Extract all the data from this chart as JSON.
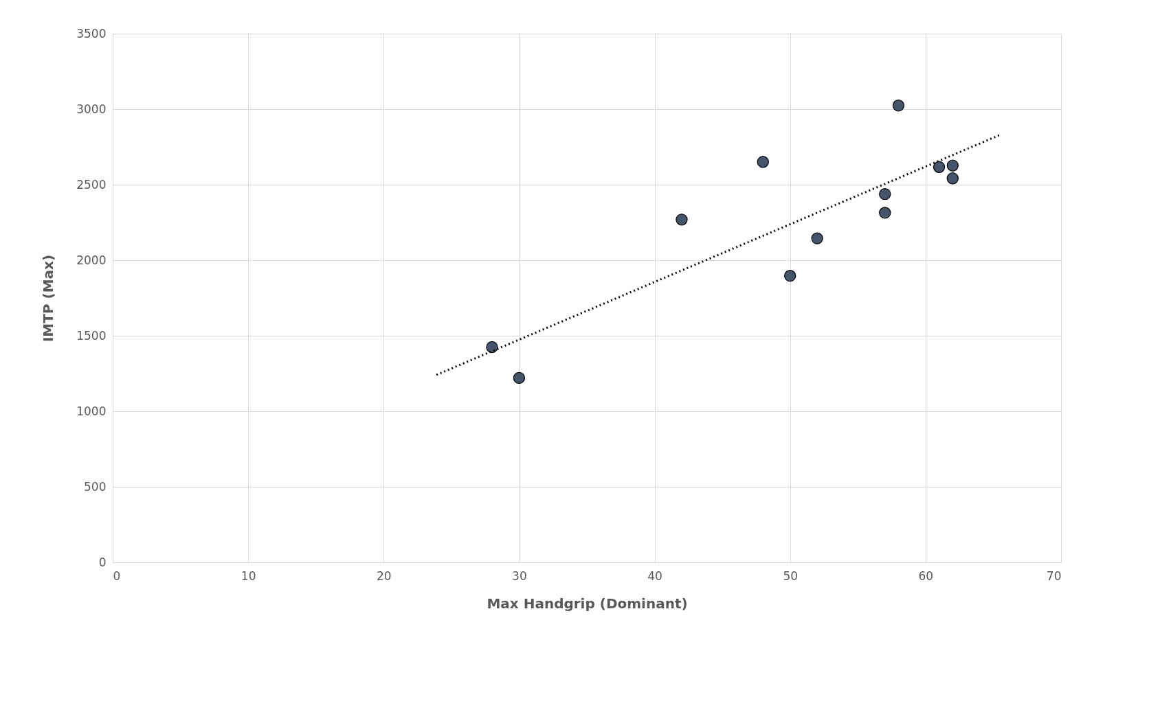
{
  "chart_data": {
    "type": "scatter",
    "xlabel": "Max Handgrip (Dominant)",
    "ylabel": "IMTP (Max)",
    "xlim": [
      0,
      70
    ],
    "xticks": [
      0,
      10,
      20,
      30,
      40,
      50,
      60,
      70
    ],
    "ylim": [
      0,
      3500
    ],
    "yticks": [
      0,
      500,
      1000,
      1500,
      2000,
      2500,
      3000,
      3500
    ],
    "grid": true,
    "marker": "circle",
    "series": [
      {
        "color": "#44546a",
        "x": [
          28,
          30,
          42,
          48,
          50,
          52,
          57,
          57,
          58,
          61,
          62,
          62
        ],
        "values": [
          1425,
          1221,
          2269,
          2651,
          1897,
          2145,
          2438,
          2314,
          3024,
          2617,
          2627,
          2542
        ]
      },
      {
        "type": "line",
        "color": "#000000",
        "line_style": "dotted",
        "marker": "none",
        "x": [
          23.9,
          65.5
        ],
        "values": [
          1241,
          2830
        ]
      }
    ]
  }
}
